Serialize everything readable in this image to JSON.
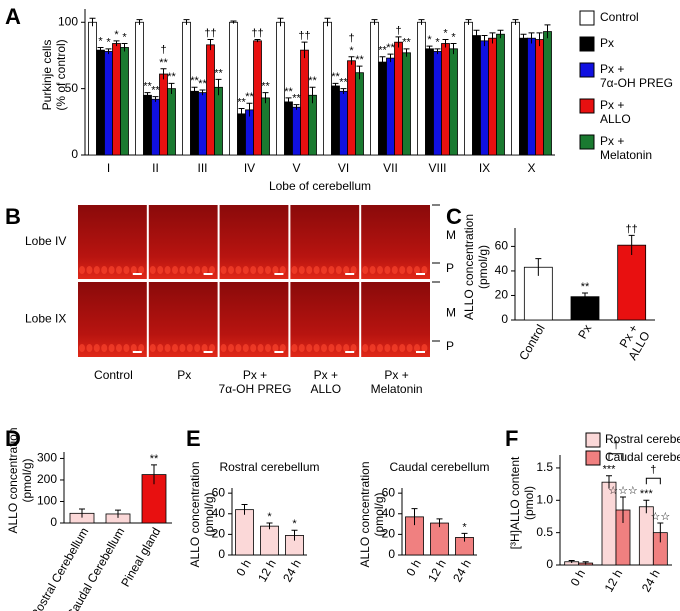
{
  "chart_data": [
    {
      "type": "bar",
      "panel_label": "A",
      "y_label": "Purkinje cells\n(% of control)",
      "x_label": "Lobe of cerebellum",
      "categories": [
        "I",
        "II",
        "III",
        "IV",
        "V",
        "VI",
        "VII",
        "VIII",
        "IX",
        "X"
      ],
      "series": [
        {
          "name": "Control",
          "color": "#ffffff",
          "values": [
            100,
            100,
            100,
            100,
            100,
            100,
            100,
            100,
            100,
            100
          ],
          "errors": [
            3,
            2,
            2,
            1,
            3,
            3,
            2,
            2,
            2,
            2
          ],
          "annotations": [
            null,
            null,
            null,
            null,
            null,
            null,
            null,
            null,
            null,
            null
          ]
        },
        {
          "name": "Px",
          "color": "#000000",
          "values": [
            79,
            45,
            48,
            31,
            40,
            52,
            70,
            80,
            90,
            88
          ],
          "errors": [
            2,
            2,
            3,
            4,
            3,
            2,
            4,
            2,
            4,
            3
          ],
          "annotations": [
            "*",
            "**",
            "**",
            "**",
            "**",
            "**",
            "**",
            "*",
            null,
            null
          ]
        },
        {
          "name": "Px +\n7α-OH PREG",
          "color": "#1010e0",
          "values": [
            78,
            42,
            47,
            34,
            36,
            48,
            73,
            78,
            86,
            88
          ],
          "errors": [
            2,
            2,
            2,
            5,
            2,
            2,
            3,
            2,
            4,
            4
          ],
          "annotations": [
            "*",
            "**",
            "**",
            "**",
            "**",
            "**",
            "**",
            "*",
            null,
            null
          ]
        },
        {
          "name": "Px +\nALLO",
          "color": "#e81010",
          "values": [
            84,
            61,
            83,
            86,
            79,
            71,
            85,
            84,
            88,
            87
          ],
          "errors": [
            2,
            4,
            4,
            1,
            6,
            3,
            4,
            3,
            4,
            5
          ],
          "annotations": [
            "*",
            "†\n**",
            "††",
            "††",
            "††",
            "†\n*",
            "†",
            "*",
            null,
            null
          ]
        },
        {
          "name": "Px +\nMelatonin",
          "color": "#1a7a30",
          "values": [
            81,
            50,
            51,
            43,
            45,
            62,
            77,
            80,
            91,
            93
          ],
          "errors": [
            3,
            4,
            6,
            4,
            6,
            5,
            3,
            4,
            3,
            5
          ],
          "annotations": [
            "*",
            "**",
            "**",
            "**",
            "**",
            "**",
            "**",
            "*",
            null,
            null
          ]
        }
      ],
      "ylim": [
        0,
        110
      ],
      "yticks": [
        0,
        50,
        100
      ],
      "legend": "right",
      "rotate_labels": false
    },
    {
      "type": "bar",
      "panel_label": "C",
      "y_label": "ALLO concentration\n(pmol/g)",
      "categories": [
        "Control",
        "Px",
        "Px +\nALLO"
      ],
      "series": [
        {
          "colors": [
            "#ffffff",
            "#000000",
            "#e81010"
          ],
          "values": [
            43,
            19,
            61
          ],
          "errors": [
            7,
            3,
            8
          ],
          "annotations": [
            null,
            "**",
            "††"
          ]
        }
      ],
      "ylim": [
        0,
        75
      ],
      "yticks": [
        0,
        20,
        40,
        60
      ],
      "rotate_labels": true
    },
    {
      "type": "bar",
      "panel_label": "D",
      "y_label": "ALLO concentration\n(pmol/g)",
      "categories": [
        "Rostral Cerebellum",
        "Caudal Cerebellum",
        "Pineal gland"
      ],
      "series": [
        {
          "colors": [
            "#fbd8d8",
            "#fbd8d8",
            "#e81010"
          ],
          "values": [
            45,
            42,
            225
          ],
          "errors": [
            20,
            18,
            45
          ],
          "annotations": [
            null,
            null,
            "**"
          ]
        }
      ],
      "ylim": [
        0,
        330
      ],
      "yticks": [
        0,
        100,
        200,
        300
      ],
      "rotate_labels": true
    },
    {
      "type": "bar",
      "panel_label": "E",
      "title": "Rostral cerebellum",
      "y_label": "ALLO concentration\n(pmol/g)",
      "categories": [
        "0 h",
        "12 h",
        "24 h"
      ],
      "series": [
        {
          "color": "#fbd8d8",
          "values": [
            44,
            28,
            19
          ],
          "errors": [
            5,
            3,
            5
          ],
          "annotations": [
            null,
            "*",
            "*"
          ]
        }
      ],
      "ylim": [
        0,
        65
      ],
      "yticks": [
        0,
        20,
        40,
        60
      ],
      "rotate_labels": true
    },
    {
      "type": "bar",
      "title": "Caudal cerebellum",
      "y_label": "ALLO concentration\n(pmol/g)",
      "categories": [
        "0 h",
        "12 h",
        "24 h"
      ],
      "series": [
        {
          "color": "#f08080",
          "values": [
            37,
            31,
            17
          ],
          "errors": [
            8,
            4,
            4
          ],
          "annotations": [
            null,
            null,
            "*"
          ]
        }
      ],
      "ylim": [
        0,
        65
      ],
      "yticks": [
        0,
        20,
        40,
        60
      ],
      "rotate_labels": true
    },
    {
      "type": "bar",
      "panel_label": "F",
      "y_label": "[³H]ALLO content\n(pmol)",
      "categories": [
        "0 h",
        "12 h",
        "24 h"
      ],
      "series": [
        {
          "name": "Rostral cerebellum",
          "color": "#fbd8d8",
          "values": [
            0.05,
            1.28,
            0.9
          ],
          "errors": [
            0.02,
            0.1,
            0.1
          ],
          "annotations": [
            null,
            "***",
            "***"
          ]
        },
        {
          "name": "Caudal cerebellum",
          "color": "#f08080",
          "values": [
            0.03,
            0.85,
            0.5
          ],
          "errors": [
            0.02,
            0.2,
            0.15
          ],
          "annotations": [
            null,
            "☆☆☆",
            "☆☆"
          ]
        }
      ],
      "brackets": [
        null,
        "†",
        "†"
      ],
      "ylim": [
        0,
        1.7
      ],
      "yticks": [
        0,
        0.5,
        {
          "value": 1,
          "label": "1.0"
        },
        1.5
      ],
      "legend": "top",
      "rotate_labels": true
    }
  ],
  "micrograph": {
    "panel_label": "B",
    "rows": [
      "Lobe IV",
      "Lobe IX"
    ],
    "columns": [
      "Control",
      "Px",
      "Px +\n7α-OH PREG",
      "Px +\nALLO",
      "Px +\nMelatonin"
    ],
    "layers": [
      "M",
      "P"
    ]
  }
}
